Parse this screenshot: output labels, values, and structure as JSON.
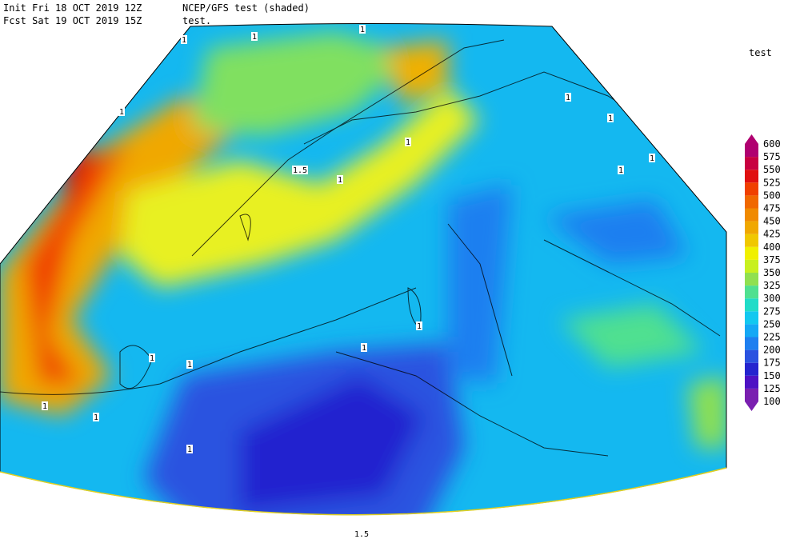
{
  "header": {
    "init": "Init  Fri 18 OCT 2019 12Z",
    "model": "NCEP/GFS test (shaded)",
    "fcst": "Fcst Sat 19 OCT 2019 15Z",
    "field": "test."
  },
  "legend": {
    "title": "test",
    "levels": [
      100,
      125,
      150,
      175,
      200,
      225,
      250,
      275,
      300,
      325,
      350,
      375,
      400,
      425,
      450,
      475,
      500,
      525,
      550,
      575,
      600
    ],
    "colors": [
      "#7a1fb0",
      "#4e12c4",
      "#2424cf",
      "#2a52e0",
      "#1e7ff0",
      "#14a8f5",
      "#12c8f0",
      "#20dcc8",
      "#50e090",
      "#90e050",
      "#c8f020",
      "#f0f000",
      "#f0c800",
      "#f0a800",
      "#f08a00",
      "#f06800",
      "#f04000",
      "#e01010",
      "#c80040",
      "#b00070"
    ]
  },
  "contour_labels": [
    "1",
    "1",
    "1",
    "1",
    "1",
    "1",
    "1",
    "1",
    "1",
    "1",
    "1",
    "1",
    "1",
    "1",
    "1",
    "1",
    "1",
    "1.5",
    "1.5"
  ]
}
